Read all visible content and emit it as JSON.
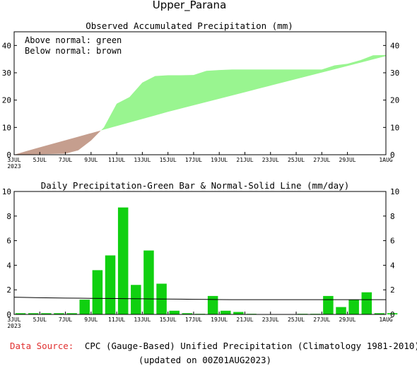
{
  "title": "Upper_Parana",
  "footer": {
    "source_label": "Data Source:",
    "source_text": "CPC (Gauge-Based) Unified Precipitation (Climatology 1981-2010)",
    "updated": "(updated on 00Z01AUG2023)",
    "source_label_color": "#e03030"
  },
  "chart_data": [
    {
      "type": "area",
      "title": "Observed Accumulated Precipitation (mm)",
      "legend": {
        "placement": "top-left",
        "lines": [
          "Above normal: green",
          "Below normal: brown"
        ]
      },
      "colors": {
        "above": "#99f590",
        "below": "#c59e8e"
      },
      "ylim": [
        0,
        45
      ],
      "yticks": [
        0,
        10,
        20,
        30,
        40
      ],
      "x_tick_labels": [
        "3JUL",
        "5JUL",
        "7JUL",
        "9JUL",
        "11JUL",
        "13JUL",
        "15JUL",
        "17JUL",
        "19JUL",
        "21JUL",
        "23JUL",
        "25JUL",
        "27JUL",
        "29JUL",
        "1AUG"
      ],
      "x_year_label": "2023",
      "days": [
        0,
        1,
        2,
        3,
        4,
        5,
        6,
        7,
        8,
        9,
        10,
        11,
        12,
        13,
        14,
        15,
        16,
        17,
        18,
        19,
        20,
        21,
        22,
        23,
        24,
        25,
        26,
        27,
        28,
        29
      ],
      "series": [
        {
          "name": "Observed",
          "values": [
            0,
            0.1,
            0.2,
            0.3,
            0.4,
            1.6,
            5.2,
            10.0,
            18.7,
            21.1,
            26.4,
            28.8,
            29.1,
            29.1,
            29.2,
            30.7,
            31.0,
            31.2,
            31.2,
            31.2,
            31.2,
            31.2,
            31.2,
            31.2,
            31.2,
            32.7,
            33.3,
            34.6,
            36.4,
            36.5
          ]
        },
        {
          "name": "Normal",
          "values": [
            0,
            1.4,
            2.7,
            4.0,
            5.3,
            6.6,
            7.9,
            9.2,
            10.5,
            11.8,
            13.1,
            14.4,
            15.7,
            16.9,
            18.1,
            19.3,
            20.5,
            21.7,
            22.9,
            24.1,
            25.3,
            26.5,
            27.7,
            28.9,
            30.1,
            31.3,
            32.5,
            33.7,
            34.9,
            36.1
          ]
        }
      ]
    },
    {
      "type": "bar",
      "title": "Daily Precipitation-Green Bar & Normal-Solid Line (mm/day)",
      "colors": {
        "bar": "#10d010",
        "line": "#000000"
      },
      "ylim": [
        0,
        10
      ],
      "yticks": [
        0,
        2,
        4,
        6,
        8,
        10
      ],
      "x_tick_labels": [
        "3JUL",
        "5JUL",
        "7JUL",
        "9JUL",
        "11JUL",
        "13JUL",
        "15JUL",
        "17JUL",
        "19JUL",
        "21JUL",
        "23JUL",
        "25JUL",
        "27JUL",
        "29JUL",
        "1AUG"
      ],
      "x_year_label": "2023",
      "days": [
        0,
        1,
        2,
        3,
        4,
        5,
        6,
        7,
        8,
        9,
        10,
        11,
        12,
        13,
        14,
        15,
        16,
        17,
        18,
        19,
        20,
        21,
        22,
        23,
        24,
        25,
        26,
        27,
        28,
        29
      ],
      "series": [
        {
          "name": "Daily precipitation",
          "values": [
            0.1,
            0.1,
            0.1,
            0.1,
            0.1,
            1.2,
            3.6,
            4.8,
            8.7,
            2.4,
            5.2,
            2.5,
            0.3,
            0.1,
            0.05,
            1.5,
            0.3,
            0.2,
            0.05,
            0,
            0,
            0,
            0.05,
            0.05,
            1.5,
            0.6,
            1.2,
            1.8,
            0.1,
            0.1
          ]
        },
        {
          "name": "Normal",
          "values": [
            1.4,
            1.38,
            1.36,
            1.34,
            1.33,
            1.32,
            1.31,
            1.3,
            1.29,
            1.28,
            1.27,
            1.26,
            1.25,
            1.24,
            1.23,
            1.22,
            1.21,
            1.2,
            1.2,
            1.2,
            1.2,
            1.2,
            1.2,
            1.2,
            1.2,
            1.2,
            1.2,
            1.2,
            1.2,
            1.2
          ]
        }
      ]
    }
  ]
}
